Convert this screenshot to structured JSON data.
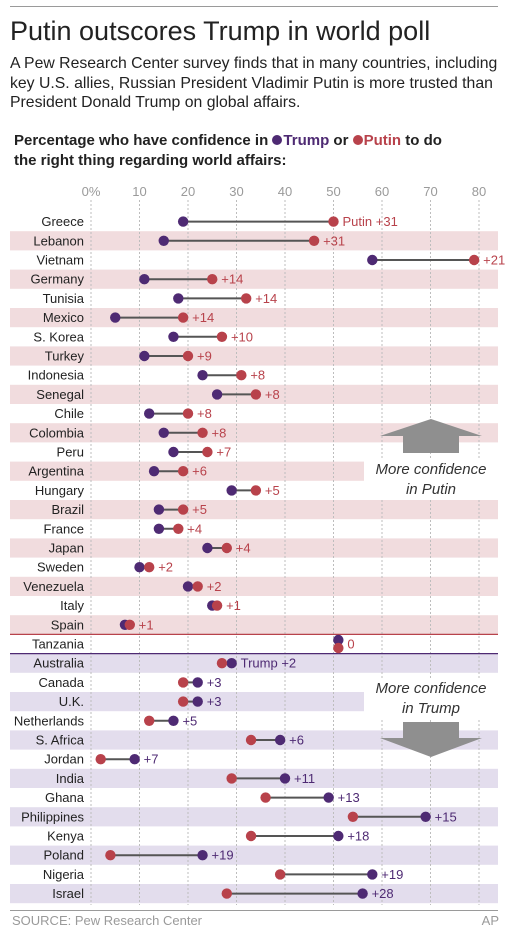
{
  "title": "Putin outscores Trump in world poll",
  "subtitle": "A Pew Research Center survey finds that in many countries, including key U.S. allies, Russian President Vladimir Putin is more trusted than President Donald Trump on global affairs.",
  "question": {
    "prefix": "Percentage who have confidence in ",
    "trump": "Trump",
    "or": " or ",
    "putin": "Putin",
    "suffix_line1": " to do",
    "line2": "the right thing regarding world affairs:"
  },
  "annotations": {
    "putin_line1": "More confidence",
    "putin_line2": "in Putin",
    "trump_line1": "More confidence",
    "trump_line2": "in Trump"
  },
  "footer": {
    "source": "SOURCE: Pew Research Center",
    "credit": "AP"
  },
  "colors": {
    "trump": "#4e2a73",
    "putin": "#b8424b",
    "band_putin": "#f1dcde",
    "band_trump": "#e3dded",
    "connector": "#555555",
    "arrow": "#8f8f8f"
  },
  "chart_data": {
    "type": "dumbbell",
    "x_ticks": [
      "0%",
      "10",
      "20",
      "30",
      "40",
      "50",
      "60",
      "70",
      "80"
    ],
    "xlim": [
      0,
      80
    ],
    "grid": true,
    "series": [
      {
        "name": "Trump"
      },
      {
        "name": "Putin"
      }
    ],
    "rows": [
      {
        "country": "Greece",
        "trump": 19,
        "putin": 50,
        "label": "Putin +31"
      },
      {
        "country": "Lebanon",
        "trump": 15,
        "putin": 46,
        "label": "+31"
      },
      {
        "country": "Vietnam",
        "trump": 58,
        "putin": 79,
        "label": "+21"
      },
      {
        "country": "Germany",
        "trump": 11,
        "putin": 25,
        "label": "+14"
      },
      {
        "country": "Tunisia",
        "trump": 18,
        "putin": 32,
        "label": "+14"
      },
      {
        "country": "Mexico",
        "trump": 5,
        "putin": 19,
        "label": "+14"
      },
      {
        "country": "S. Korea",
        "trump": 17,
        "putin": 27,
        "label": "+10"
      },
      {
        "country": "Turkey",
        "trump": 11,
        "putin": 20,
        "label": "+9"
      },
      {
        "country": "Indonesia",
        "trump": 23,
        "putin": 31,
        "label": "+8"
      },
      {
        "country": "Senegal",
        "trump": 26,
        "putin": 34,
        "label": "+8"
      },
      {
        "country": "Chile",
        "trump": 12,
        "putin": 20,
        "label": "+8"
      },
      {
        "country": "Colombia",
        "trump": 15,
        "putin": 23,
        "label": "+8"
      },
      {
        "country": "Peru",
        "trump": 17,
        "putin": 24,
        "label": "+7"
      },
      {
        "country": "Argentina",
        "trump": 13,
        "putin": 19,
        "label": "+6"
      },
      {
        "country": "Hungary",
        "trump": 29,
        "putin": 34,
        "label": "+5"
      },
      {
        "country": "Brazil",
        "trump": 14,
        "putin": 19,
        "label": "+5"
      },
      {
        "country": "France",
        "trump": 14,
        "putin": 18,
        "label": "+4"
      },
      {
        "country": "Japan",
        "trump": 24,
        "putin": 28,
        "label": "+4"
      },
      {
        "country": "Sweden",
        "trump": 10,
        "putin": 12,
        "label": "+2"
      },
      {
        "country": "Venezuela",
        "trump": 20,
        "putin": 22,
        "label": "+2"
      },
      {
        "country": "Italy",
        "trump": 25,
        "putin": 26,
        "label": "+1"
      },
      {
        "country": "Spain",
        "trump": 7,
        "putin": 8,
        "label": "+1"
      },
      {
        "country": "Tanzania",
        "trump": 51,
        "putin": 51,
        "label": "0"
      },
      {
        "country": "Australia",
        "trump": 29,
        "putin": 27,
        "label": "Trump +2"
      },
      {
        "country": "Canada",
        "trump": 22,
        "putin": 19,
        "label": "+3"
      },
      {
        "country": "U.K.",
        "trump": 22,
        "putin": 19,
        "label": "+3"
      },
      {
        "country": "Netherlands",
        "trump": 17,
        "putin": 12,
        "label": "+5"
      },
      {
        "country": "S. Africa",
        "trump": 39,
        "putin": 33,
        "label": "+6"
      },
      {
        "country": "Jordan",
        "trump": 9,
        "putin": 2,
        "label": "+7"
      },
      {
        "country": "India",
        "trump": 40,
        "putin": 29,
        "label": "+11"
      },
      {
        "country": "Ghana",
        "trump": 49,
        "putin": 36,
        "label": "+13"
      },
      {
        "country": "Philippines",
        "trump": 69,
        "putin": 54,
        "label": "+15"
      },
      {
        "country": "Kenya",
        "trump": 51,
        "putin": 33,
        "label": "+18"
      },
      {
        "country": "Poland",
        "trump": 23,
        "putin": 4,
        "label": "+19"
      },
      {
        "country": "Nigeria",
        "trump": 58,
        "putin": 39,
        "label": "+19"
      },
      {
        "country": "Israel",
        "trump": 56,
        "putin": 28,
        "label": "+28"
      }
    ]
  }
}
